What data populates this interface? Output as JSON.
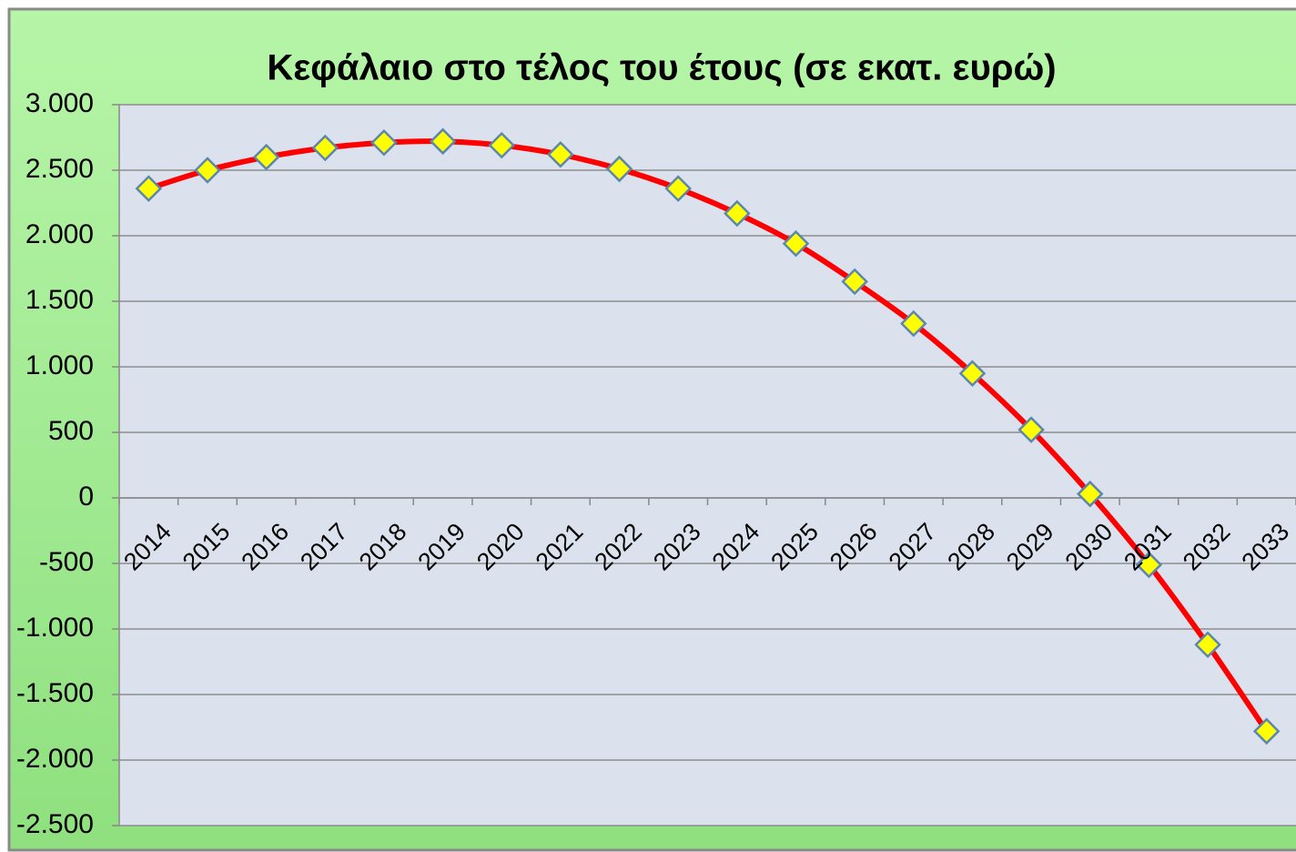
{
  "chart_data": {
    "type": "line",
    "title": "Κεφάλαιο στο τέλος του έτους  (σε εκατ.  ευρώ)",
    "categories": [
      "2014",
      "2015",
      "2016",
      "2017",
      "2018",
      "2019",
      "2020",
      "2021",
      "2022",
      "2023",
      "2024",
      "2025",
      "2026",
      "2027",
      "2028",
      "2029",
      "2030",
      "2031",
      "2032",
      "2033"
    ],
    "values": [
      2360,
      2500,
      2600,
      2670,
      2710,
      2720,
      2690,
      2620,
      2510,
      2360,
      2170,
      1940,
      1650,
      1330,
      950,
      520,
      30,
      -510,
      -1120,
      -1780
    ],
    "color": "#ff0000",
    "marker_fill": "#ffff00",
    "marker_edge": "#5b86b0",
    "ylim": [
      -2500,
      3000
    ],
    "yticks": [
      {
        "value": -2500,
        "label": "-2.500"
      },
      {
        "value": -2000,
        "label": "-2.000"
      },
      {
        "value": -1500,
        "label": "-1.500"
      },
      {
        "value": -1000,
        "label": "-1.000"
      },
      -500,
      0,
      500,
      {
        "value": 1000,
        "label": "1.000"
      },
      {
        "value": 1500,
        "label": "1.500"
      },
      {
        "value": 2000,
        "label": "2.000"
      },
      {
        "value": 2500,
        "label": "2.500"
      },
      {
        "value": 3000,
        "label": "3.000"
      }
    ],
    "grid": true
  }
}
